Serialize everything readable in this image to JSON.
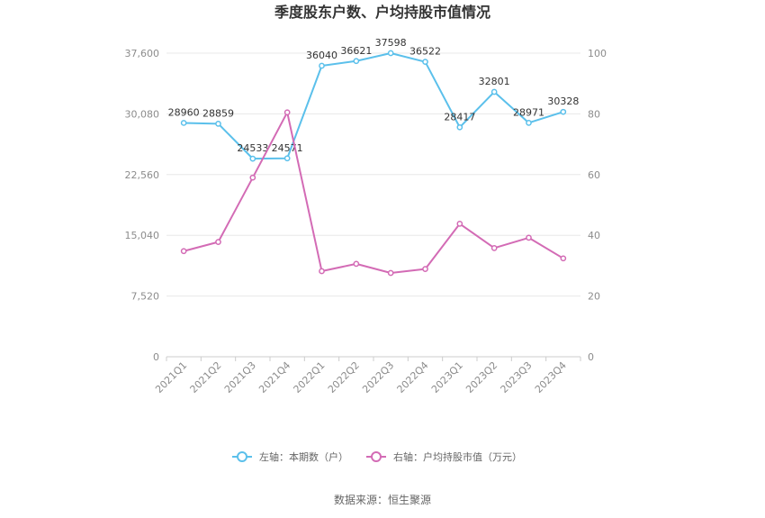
{
  "chart_data": {
    "type": "line",
    "title": "季度股东户数、户均持股市值情况",
    "categories": [
      "2021Q1",
      "2021Q2",
      "2021Q3",
      "2021Q4",
      "2022Q1",
      "2022Q2",
      "2022Q3",
      "2022Q4",
      "2023Q1",
      "2023Q2",
      "2023Q3",
      "2023Q4"
    ],
    "left_axis": {
      "ticks": [
        "0",
        "7,520",
        "15,040",
        "22,560",
        "30,080",
        "37,600"
      ],
      "min": 0,
      "max": 37600
    },
    "right_axis": {
      "ticks": [
        "0",
        "20",
        "40",
        "60",
        "80",
        "100"
      ],
      "min": 0,
      "max": 100
    },
    "series": [
      {
        "name": "左轴：本期数（户）",
        "axis": "left",
        "color": "#5bc0eb",
        "values": [
          28960,
          28859,
          24533,
          24571,
          36040,
          36621,
          37598,
          36522,
          28417,
          32801,
          28971,
          30328
        ],
        "labels": [
          "28960",
          "28859",
          "24533",
          "24571",
          "36040",
          "36621",
          "37598",
          "36522",
          "28417",
          "32801",
          "28971",
          "30328"
        ]
      },
      {
        "name": "右轴：户均持股市值（万元）",
        "axis": "right",
        "color": "#d36bb5",
        "values": [
          34.8,
          37.8,
          59.0,
          80.5,
          28.2,
          30.6,
          27.6,
          28.9,
          43.8,
          35.8,
          39.2,
          32.4
        ]
      }
    ],
    "grid": true,
    "legend_position": "bottom"
  },
  "source": "数据来源：恒生聚源"
}
